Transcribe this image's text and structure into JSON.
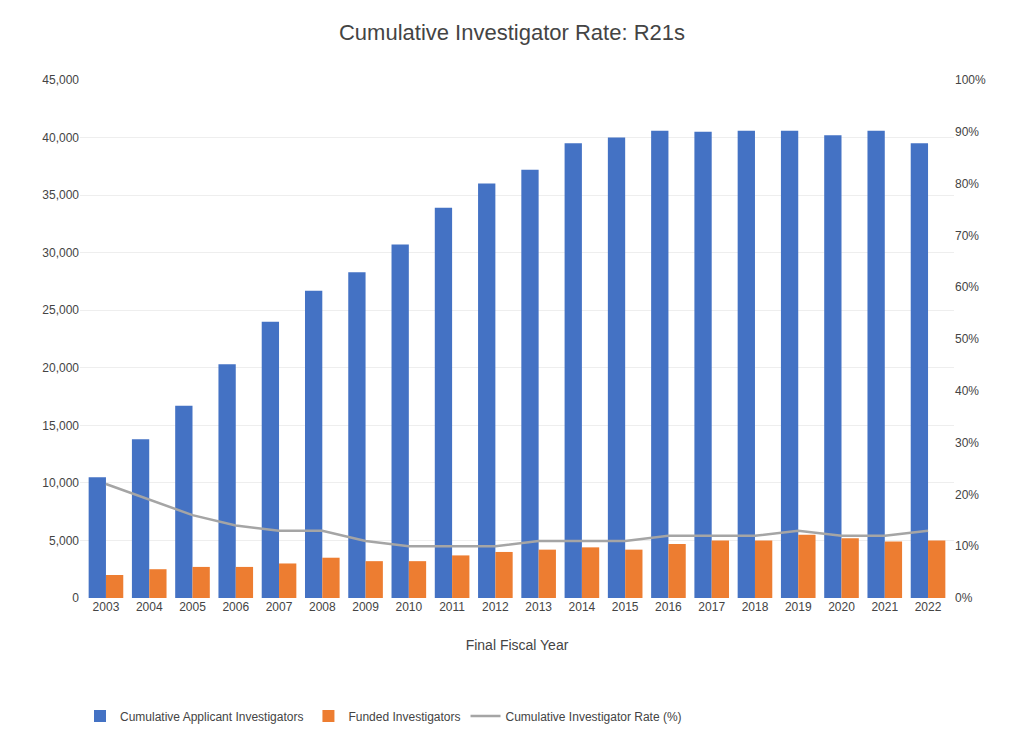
{
  "chart_data": {
    "type": "bar",
    "title": "Cumulative Investigator Rate: R21s",
    "xlabel": "Final Fiscal Year",
    "categories": [
      "2003",
      "2004",
      "2005",
      "2006",
      "2007",
      "2008",
      "2009",
      "2010",
      "2011",
      "2012",
      "2013",
      "2014",
      "2015",
      "2016",
      "2017",
      "2018",
      "2019",
      "2020",
      "2021",
      "2022"
    ],
    "series": [
      {
        "name": "Cumulative Applicant Investigators",
        "type": "bar",
        "color": "#4472C4",
        "values": [
          10500,
          13800,
          16700,
          20300,
          24000,
          26700,
          28300,
          30700,
          33900,
          36000,
          37200,
          39500,
          40000,
          40600,
          40500,
          40600,
          40600,
          40200,
          40600,
          39500
        ]
      },
      {
        "name": "Funded Investigators",
        "type": "bar",
        "color": "#ED7D31",
        "values": [
          2000,
          2500,
          2700,
          2700,
          3000,
          3500,
          3200,
          3200,
          3700,
          4000,
          4200,
          4400,
          4200,
          4700,
          5000,
          5000,
          5500,
          5200,
          4900,
          5000
        ]
      },
      {
        "name": "Cumulative Investigator Rate (%)",
        "type": "line",
        "color": "#A5A5A5",
        "axis": "y2",
        "values": [
          22,
          19,
          16,
          14,
          13,
          13,
          11,
          10,
          10,
          10,
          11,
          11,
          11,
          12,
          12,
          12,
          13,
          12,
          12,
          13
        ]
      }
    ],
    "ylim": [
      0,
      45000
    ],
    "yticks": [
      0,
      {
        "value": 5000,
        "label": "5,000"
      },
      {
        "value": 10000,
        "label": "10,000"
      },
      {
        "value": 15000,
        "label": "15,000"
      },
      {
        "value": 20000,
        "label": "20,000"
      },
      {
        "value": 25000,
        "label": "25,000"
      },
      {
        "value": 30000,
        "label": "30,000"
      },
      {
        "value": 35000,
        "label": "35,000"
      },
      {
        "value": 40000,
        "label": "40,000"
      },
      {
        "value": 45000,
        "label": "45,000"
      }
    ],
    "y2lim": [
      0,
      100
    ],
    "y2ticks": [
      {
        "value": 0,
        "label": "0%"
      },
      {
        "value": 10,
        "label": "10%"
      },
      {
        "value": 20,
        "label": "20%"
      },
      {
        "value": 30,
        "label": "30%"
      },
      {
        "value": 40,
        "label": "40%"
      },
      {
        "value": 50,
        "label": "50%"
      },
      {
        "value": 60,
        "label": "60%"
      },
      {
        "value": 70,
        "label": "70%"
      },
      {
        "value": 80,
        "label": "80%"
      },
      {
        "value": 90,
        "label": "90%"
      },
      {
        "value": 100,
        "label": "100%"
      }
    ],
    "grid": true,
    "legend": "lower left"
  }
}
